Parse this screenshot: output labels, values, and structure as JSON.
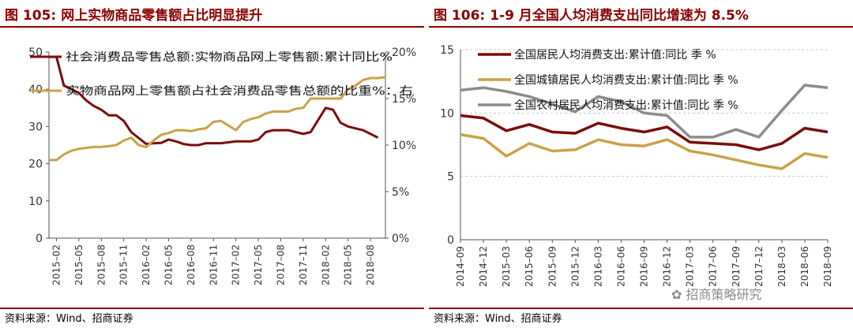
{
  "left": {
    "figure_no": "图 105:",
    "title": "网上实物商品零售额占比明显提升",
    "source": "资料来源：Wind、招商证券"
  },
  "right": {
    "figure_no": "图 106:",
    "title": "1-9 月全国人均消费支出同比增速为 8.5%",
    "source": "资料来源：Wind、招商证券"
  },
  "watermark": "招商策略研究",
  "colors": {
    "dark_red": "#7b0c0c",
    "gold": "#c9a24a",
    "gray": "#8c8c8c",
    "title_red": "#8b0000"
  },
  "chart_data": [
    {
      "type": "line",
      "title": "网上实物商品零售额占比明显提升",
      "x": [
        "2015-01",
        "2015-02",
        "2015-03",
        "2015-04",
        "2015-05",
        "2015-06",
        "2015-07",
        "2015-08",
        "2015-09",
        "2015-10",
        "2015-11",
        "2015-12",
        "2016-01",
        "2016-02",
        "2016-03",
        "2016-04",
        "2016-05",
        "2016-06",
        "2016-07",
        "2016-08",
        "2016-09",
        "2016-10",
        "2016-11",
        "2016-12",
        "2017-01",
        "2017-02",
        "2017-03",
        "2017-04",
        "2017-05",
        "2017-06",
        "2017-07",
        "2017-08",
        "2017-09",
        "2017-10",
        "2017-11",
        "2017-12",
        "2018-01",
        "2018-02",
        "2018-03",
        "2018-04",
        "2018-05",
        "2018-06",
        "2018-07",
        "2018-08",
        "2018-09",
        "2018-10"
      ],
      "xticks": [
        "2015–02",
        "2015–05",
        "2015–08",
        "2015–11",
        "2016–02",
        "2016–05",
        "2016–08",
        "2016–11",
        "2017–02",
        "2017–05",
        "2017–08",
        "2017–11",
        "2018–02",
        "2018–05",
        "2018–08"
      ],
      "yticks_left": [
        "0",
        "10",
        "20",
        "30",
        "40",
        "50"
      ],
      "yticks_right": [
        "0%",
        "5%",
        "10%",
        "15%",
        "20%"
      ],
      "ylim_left": [
        0,
        50
      ],
      "ylim_right": [
        0,
        20
      ],
      "legend_position": "top",
      "series": [
        {
          "name": "社会消费品零售总额:实物商品网上零售额:累计同比%",
          "axis": "left",
          "color": "#7b0c0c",
          "x": [
            "2015-01",
            "2015-02",
            "2015-03",
            "2015-04",
            "2015-05",
            "2015-06",
            "2015-07",
            "2015-08",
            "2015-09",
            "2015-10",
            "2015-11",
            "2015-12",
            "2016-02",
            "2016-03",
            "2016-04",
            "2016-05",
            "2016-06",
            "2016-07",
            "2016-08",
            "2016-09",
            "2016-10",
            "2016-11",
            "2016-12",
            "2017-02",
            "2017-03",
            "2017-04",
            "2017-05",
            "2017-06",
            "2017-07",
            "2017-08",
            "2017-09",
            "2017-10",
            "2017-11",
            "2017-12",
            "2018-02",
            "2018-03",
            "2018-04",
            "2018-05",
            "2018-06",
            "2018-07",
            "2018-08",
            "2018-09"
          ],
          "values": [
            48.7,
            48.7,
            41.0,
            40.0,
            39.0,
            37.0,
            35.5,
            34.5,
            33.0,
            33.0,
            31.5,
            28.5,
            25.3,
            25.5,
            25.6,
            26.5,
            26.0,
            25.3,
            25.0,
            25.0,
            25.5,
            25.5,
            25.5,
            26.0,
            26.0,
            26.0,
            26.5,
            28.5,
            29.0,
            29.0,
            29.0,
            28.5,
            28.0,
            28.5,
            35.0,
            34.5,
            31.0,
            30.0,
            29.5,
            29.0,
            28.0,
            27.0
          ]
        },
        {
          "name": "实物商品网上零售额占社会消费品零售总额的比重%：右",
          "axis": "right",
          "color": "#c9a24a",
          "x": [
            "2015-01",
            "2015-02",
            "2015-03",
            "2015-04",
            "2015-05",
            "2015-06",
            "2015-07",
            "2015-08",
            "2015-09",
            "2015-10",
            "2015-11",
            "2015-12",
            "2016-01",
            "2016-02",
            "2016-03",
            "2016-04",
            "2016-05",
            "2016-06",
            "2016-07",
            "2016-08",
            "2016-09",
            "2016-10",
            "2016-11",
            "2016-12",
            "2017-02",
            "2017-03",
            "2017-04",
            "2017-05",
            "2017-06",
            "2017-07",
            "2017-08",
            "2017-09",
            "2017-10",
            "2017-11",
            "2017-12",
            "2018-02",
            "2018-03",
            "2018-04",
            "2018-05",
            "2018-06",
            "2018-07",
            "2018-08",
            "2018-09",
            "2018-10"
          ],
          "values": [
            8.4,
            8.4,
            9.0,
            9.4,
            9.6,
            9.7,
            9.8,
            9.8,
            9.9,
            10.0,
            10.5,
            10.8,
            10.0,
            9.8,
            10.5,
            11.1,
            11.3,
            11.6,
            11.6,
            11.5,
            11.7,
            11.8,
            12.5,
            12.6,
            11.6,
            12.5,
            12.8,
            13.0,
            13.4,
            13.6,
            13.6,
            13.6,
            13.9,
            14.0,
            15.0,
            15.0,
            15.0,
            15.0,
            16.0,
            16.4,
            17.0,
            17.2,
            17.2,
            17.3
          ]
        }
      ]
    },
    {
      "type": "line",
      "title": "1-9 月全国人均消费支出同比增速为 8.5%",
      "categories": [
        "2014-09",
        "2014-12",
        "2015-03",
        "2015-06",
        "2015-09",
        "2015-12",
        "2016-03",
        "2016-06",
        "2016-09",
        "2016-12",
        "2017-03",
        "2017-06",
        "2017-09",
        "2017-12",
        "2018-03",
        "2018-06",
        "2018-09"
      ],
      "xticks": [
        "2014–09",
        "2014–12",
        "2015–03",
        "2015–06",
        "2015–09",
        "2015–12",
        "2016–03",
        "2016–06",
        "2016–09",
        "2016–12",
        "2017–03",
        "2017–06",
        "2017–09",
        "2017–12",
        "2018–03",
        "2018–06",
        "2018–09"
      ],
      "yticks": [
        "0",
        "5",
        "10",
        "15"
      ],
      "ylim": [
        0,
        15
      ],
      "grid": true,
      "legend_position": "top-left",
      "series": [
        {
          "name": "全国居民人均消费支出:累计值:同比 季 %",
          "color": "#7b0c0c",
          "values": [
            9.8,
            9.6,
            8.6,
            9.1,
            8.5,
            8.4,
            9.2,
            8.8,
            8.5,
            8.9,
            7.7,
            7.6,
            7.5,
            7.1,
            7.6,
            8.8,
            8.5
          ]
        },
        {
          "name": "全国城镇居民人均消费支出:累计值:同比 季 %",
          "color": "#c9a24a",
          "values": [
            8.3,
            8.0,
            6.6,
            7.6,
            7.0,
            7.1,
            7.9,
            7.5,
            7.4,
            7.9,
            7.0,
            6.7,
            6.3,
            5.9,
            5.6,
            6.8,
            6.5
          ]
        },
        {
          "name": "全国农村居民人均消费支出:累计值:同比 季 %",
          "color": "#8c8c8c",
          "values": [
            11.8,
            12.0,
            11.7,
            11.3,
            10.7,
            10.1,
            11.3,
            10.9,
            10.0,
            9.8,
            8.1,
            8.1,
            8.7,
            8.1,
            10.2,
            12.2,
            12.0
          ]
        }
      ]
    }
  ]
}
